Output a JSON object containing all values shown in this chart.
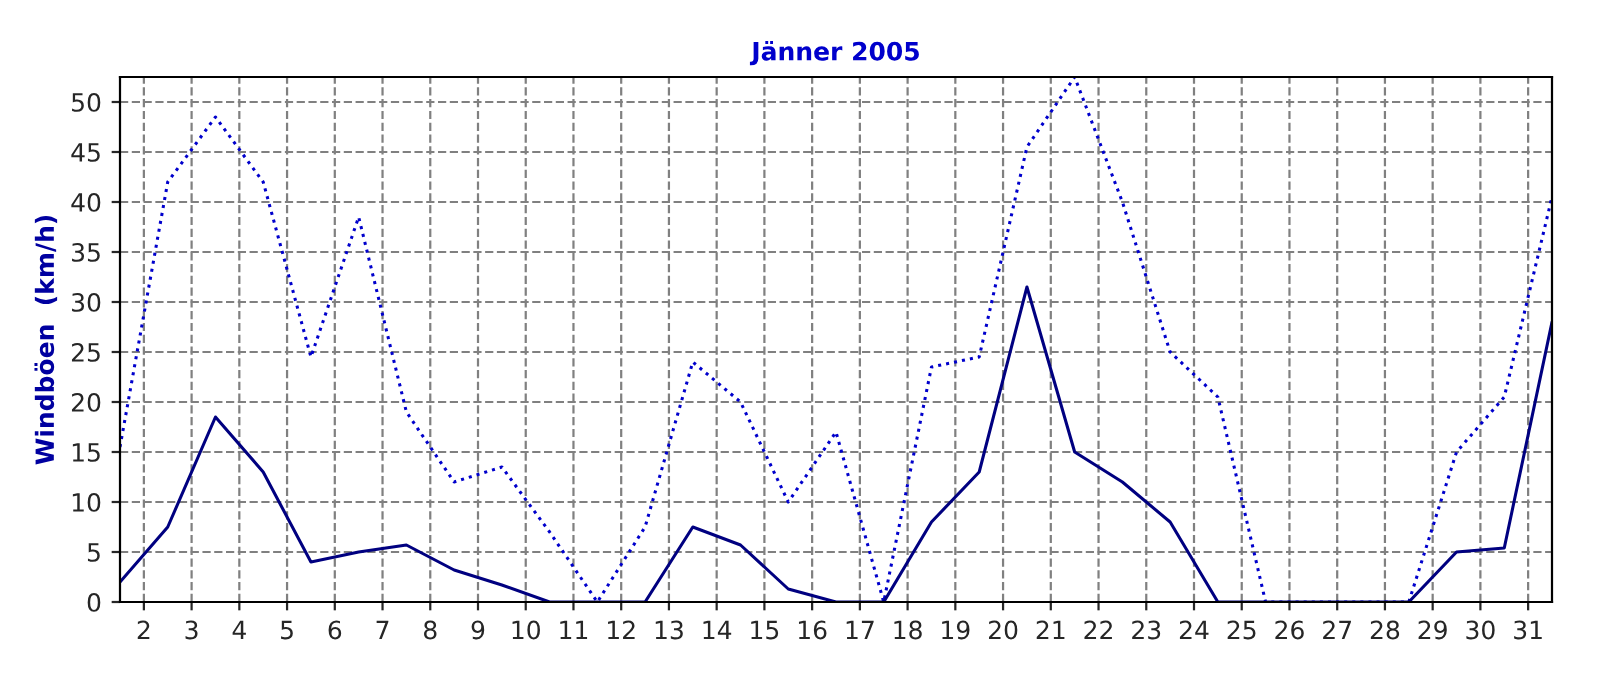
{
  "chart_data": {
    "type": "line",
    "title": "Jänner 2005",
    "ylabel": "Windböen  (km/h)",
    "x": [
      1.5,
      2.5,
      3.5,
      4.5,
      5.5,
      6.5,
      7.5,
      8.5,
      9.5,
      10.5,
      11.5,
      12.5,
      13.5,
      14.5,
      15.5,
      16.5,
      17.5,
      18.5,
      19.5,
      20.5,
      21.5,
      22.5,
      23.5,
      24.5,
      25.5,
      26.5,
      27.5,
      28.5,
      29.5,
      30.5,
      31.5
    ],
    "series": [
      {
        "color": "#0000cc",
        "line_style": "dotted",
        "values": [
          15.5,
          42,
          48.5,
          42,
          24.5,
          38.5,
          19,
          12,
          13.5,
          7,
          0,
          7.5,
          24,
          20,
          10,
          17,
          0,
          23.5,
          24.5,
          45.5,
          52.5,
          40,
          25,
          20.5,
          0,
          0,
          0,
          0,
          15,
          20.5,
          40.5
        ]
      },
      {
        "color": "#000080",
        "line_style": "solid",
        "values": [
          2,
          7.5,
          18.5,
          13,
          4,
          5,
          5.7,
          3.2,
          1.7,
          0,
          0,
          0,
          7.5,
          5.7,
          1.3,
          0,
          0,
          8,
          13,
          31.5,
          15,
          12,
          8,
          0,
          0,
          0,
          0,
          0,
          5,
          5.4,
          28
        ]
      }
    ],
    "xlim": [
      1.5,
      31.5
    ],
    "ylim": [
      0,
      52.5
    ],
    "xticks": [
      2,
      3,
      4,
      5,
      6,
      7,
      8,
      9,
      10,
      11,
      12,
      13,
      14,
      15,
      16,
      17,
      18,
      19,
      20,
      21,
      22,
      23,
      24,
      25,
      26,
      27,
      28,
      29,
      30,
      31
    ],
    "yticks": [
      0,
      5,
      10,
      15,
      20,
      25,
      30,
      35,
      40,
      45,
      50
    ],
    "grid": true,
    "marker": "none"
  }
}
